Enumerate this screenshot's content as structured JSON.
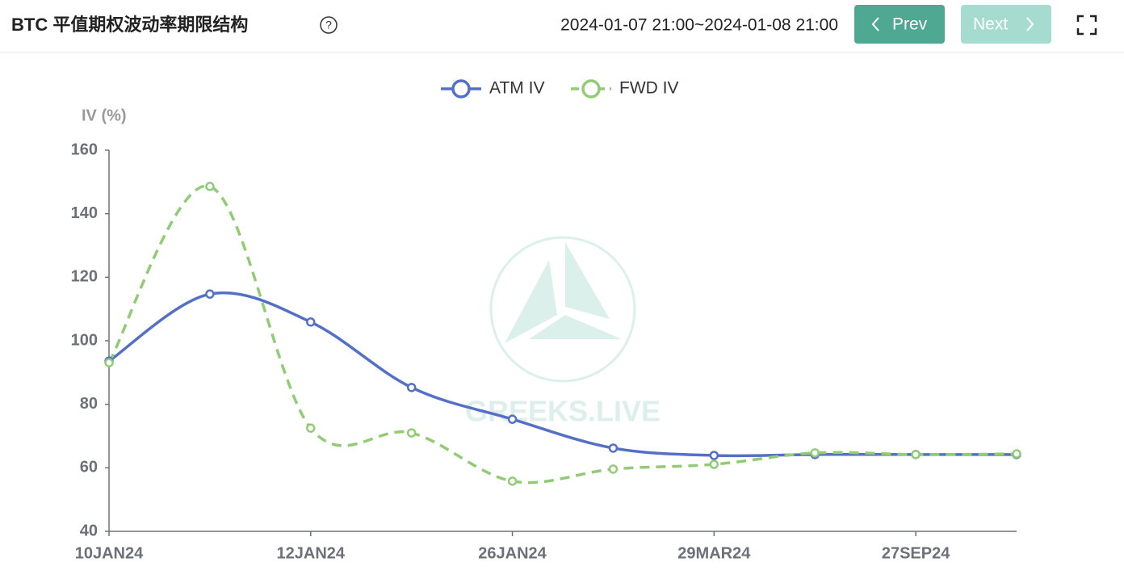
{
  "header": {
    "title": "BTC 平值期权波动率期限结构",
    "date_range": "2024-01-07 21:00~2024-01-08 21:00",
    "prev": "Prev",
    "next": "Next"
  },
  "chart_data": {
    "type": "line",
    "watermark": "GREEKS.LIVE",
    "ylabel": "IV (%)",
    "categories": [
      "10JAN24",
      null,
      "12JAN24",
      null,
      "26JAN24",
      null,
      "29MAR24",
      null,
      "27SEP24",
      null
    ],
    "series": [
      {
        "name": "ATM IV",
        "color": "#5470c6",
        "dashed": false,
        "values": [
          93.6,
          114.7,
          105.9,
          85.3,
          75.3,
          66.2,
          63.9,
          64.2,
          64.2,
          64.2
        ]
      },
      {
        "name": "FWD IV",
        "color": "#91cc75",
        "dashed": true,
        "values": [
          93.1,
          148.6,
          72.5,
          71.0,
          55.8,
          59.6,
          61.1,
          64.7,
          64.2,
          64.4
        ]
      }
    ],
    "ylim": [
      40,
      160
    ],
    "yticks": [
      40,
      60,
      80,
      100,
      120,
      140,
      160
    ],
    "grid": false,
    "smooth": true
  }
}
